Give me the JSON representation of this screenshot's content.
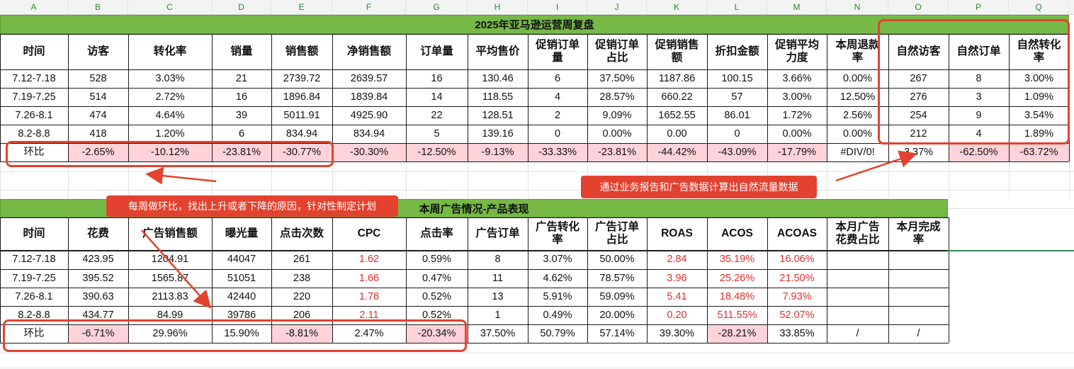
{
  "column_letters": [
    "A",
    "B",
    "C",
    "D",
    "E",
    "F",
    "G",
    "H",
    "I",
    "J",
    "K",
    "L",
    "M",
    "N",
    "O",
    "P",
    "Q"
  ],
  "table1": {
    "title": "2025年亚马逊运营周复盘",
    "headers": [
      [
        "时间"
      ],
      [
        "访客"
      ],
      [
        "转化率"
      ],
      [
        "销量"
      ],
      [
        "销售额"
      ],
      [
        "净销售额"
      ],
      [
        "订单量"
      ],
      [
        "平均售价"
      ],
      [
        "促销订单",
        "量"
      ],
      [
        "促销订单",
        "占比"
      ],
      [
        "促销销售",
        "额"
      ],
      [
        "折扣金额"
      ],
      [
        "促销平均",
        "力度"
      ],
      [
        "本周退款",
        "率"
      ],
      [
        "自然访客"
      ],
      [
        "自然订单"
      ],
      [
        "自然转化",
        "率"
      ]
    ],
    "rows": [
      [
        "7.12-7.18",
        "528",
        "3.03%",
        "21",
        "2739.72",
        "2639.57",
        "16",
        "130.46",
        "6",
        "37.50%",
        "1187.86",
        "100.15",
        "3.66%",
        "0.00%",
        "267",
        "8",
        "3.00%"
      ],
      [
        "7.19-7.25",
        "514",
        "2.72%",
        "16",
        "1896.84",
        "1839.84",
        "14",
        "118.55",
        "4",
        "28.57%",
        "660.22",
        "57",
        "3.00%",
        "12.50%",
        "276",
        "3",
        "1.09%"
      ],
      [
        "7.26-8.1",
        "474",
        "4.64%",
        "39",
        "5011.91",
        "4925.90",
        "22",
        "128.51",
        "2",
        "9.09%",
        "1652.55",
        "86.01",
        "1.72%",
        "2.56%",
        "254",
        "9",
        "3.54%"
      ],
      [
        "8.2-8.8",
        "418",
        "1.20%",
        "6",
        "834.94",
        "834.94",
        "5",
        "139.16",
        "0",
        "0.00%",
        "0.00",
        "0",
        "0.00%",
        "0.00%",
        "212",
        "4",
        "1.89%"
      ]
    ],
    "ratio_row": [
      "环比",
      "-2.65%",
      "-10.12%",
      "-23.81%",
      "-30.77%",
      "-30.30%",
      "-12.50%",
      "-9.13%",
      "-33.33%",
      "-23.81%",
      "-44.42%",
      "-43.09%",
      "-17.79%",
      "#DIV/0!",
      "3.37%",
      "-62.50%",
      "-63.72%"
    ]
  },
  "table2": {
    "title": "本周广告情况-产品表现",
    "headers": [
      [
        "时间"
      ],
      [
        "花费"
      ],
      [
        "广告销售额"
      ],
      [
        "曝光量"
      ],
      [
        "点击次数"
      ],
      [
        "CPC"
      ],
      [
        "点击率"
      ],
      [
        "广告订单"
      ],
      [
        "广告转化",
        "率"
      ],
      [
        "广告订单",
        "占比"
      ],
      [
        "ROAS"
      ],
      [
        "ACOS"
      ],
      [
        "ACOAS"
      ],
      [
        "本月广告",
        "花费占比"
      ],
      [
        "本月完成",
        "率"
      ]
    ],
    "rows": [
      [
        "7.12-7.18",
        "423.95",
        "1204.91",
        "44047",
        "261",
        "1.62",
        "0.59%",
        "8",
        "3.07%",
        "50.00%",
        "2.84",
        "35.19%",
        "16.06%",
        "",
        ""
      ],
      [
        "7.19-7.25",
        "395.52",
        "1565.87",
        "51051",
        "238",
        "1.66",
        "0.47%",
        "11",
        "4.62%",
        "78.57%",
        "3.96",
        "25.26%",
        "21.50%",
        "",
        ""
      ],
      [
        "7.26-8.1",
        "390.63",
        "2113.83",
        "42440",
        "220",
        "1.78",
        "0.52%",
        "13",
        "5.91%",
        "59.09%",
        "5.41",
        "18.48%",
        "7.93%",
        "",
        ""
      ],
      [
        "8.2-8.8",
        "434.77",
        "84.99",
        "39786",
        "206",
        "2.11",
        "0.52%",
        "1",
        "0.49%",
        "20.00%",
        "0.20",
        "511.55%",
        "52.07%",
        "",
        ""
      ]
    ],
    "ratio_row": [
      "环比",
      "-6.71%",
      "29.96%",
      "15.90%",
      "-8.81%",
      "2.47%",
      "-20.34%",
      "37.50%",
      "50.79%",
      "57.14%",
      "39.30%",
      "-28.21%",
      "33.85%",
      "/",
      "/"
    ]
  },
  "annotations": {
    "note_natural": "通过业务报告和广告数据计算出自然流量数据",
    "note_weekly": "每周做环比，找出上升或者下降的原因，针对性制定计划"
  },
  "colors": {
    "banner_green": "#76b947",
    "highlight_pink": "#ffd3d9",
    "annotation_red": "#e2422f",
    "value_red": "#e0302e"
  }
}
